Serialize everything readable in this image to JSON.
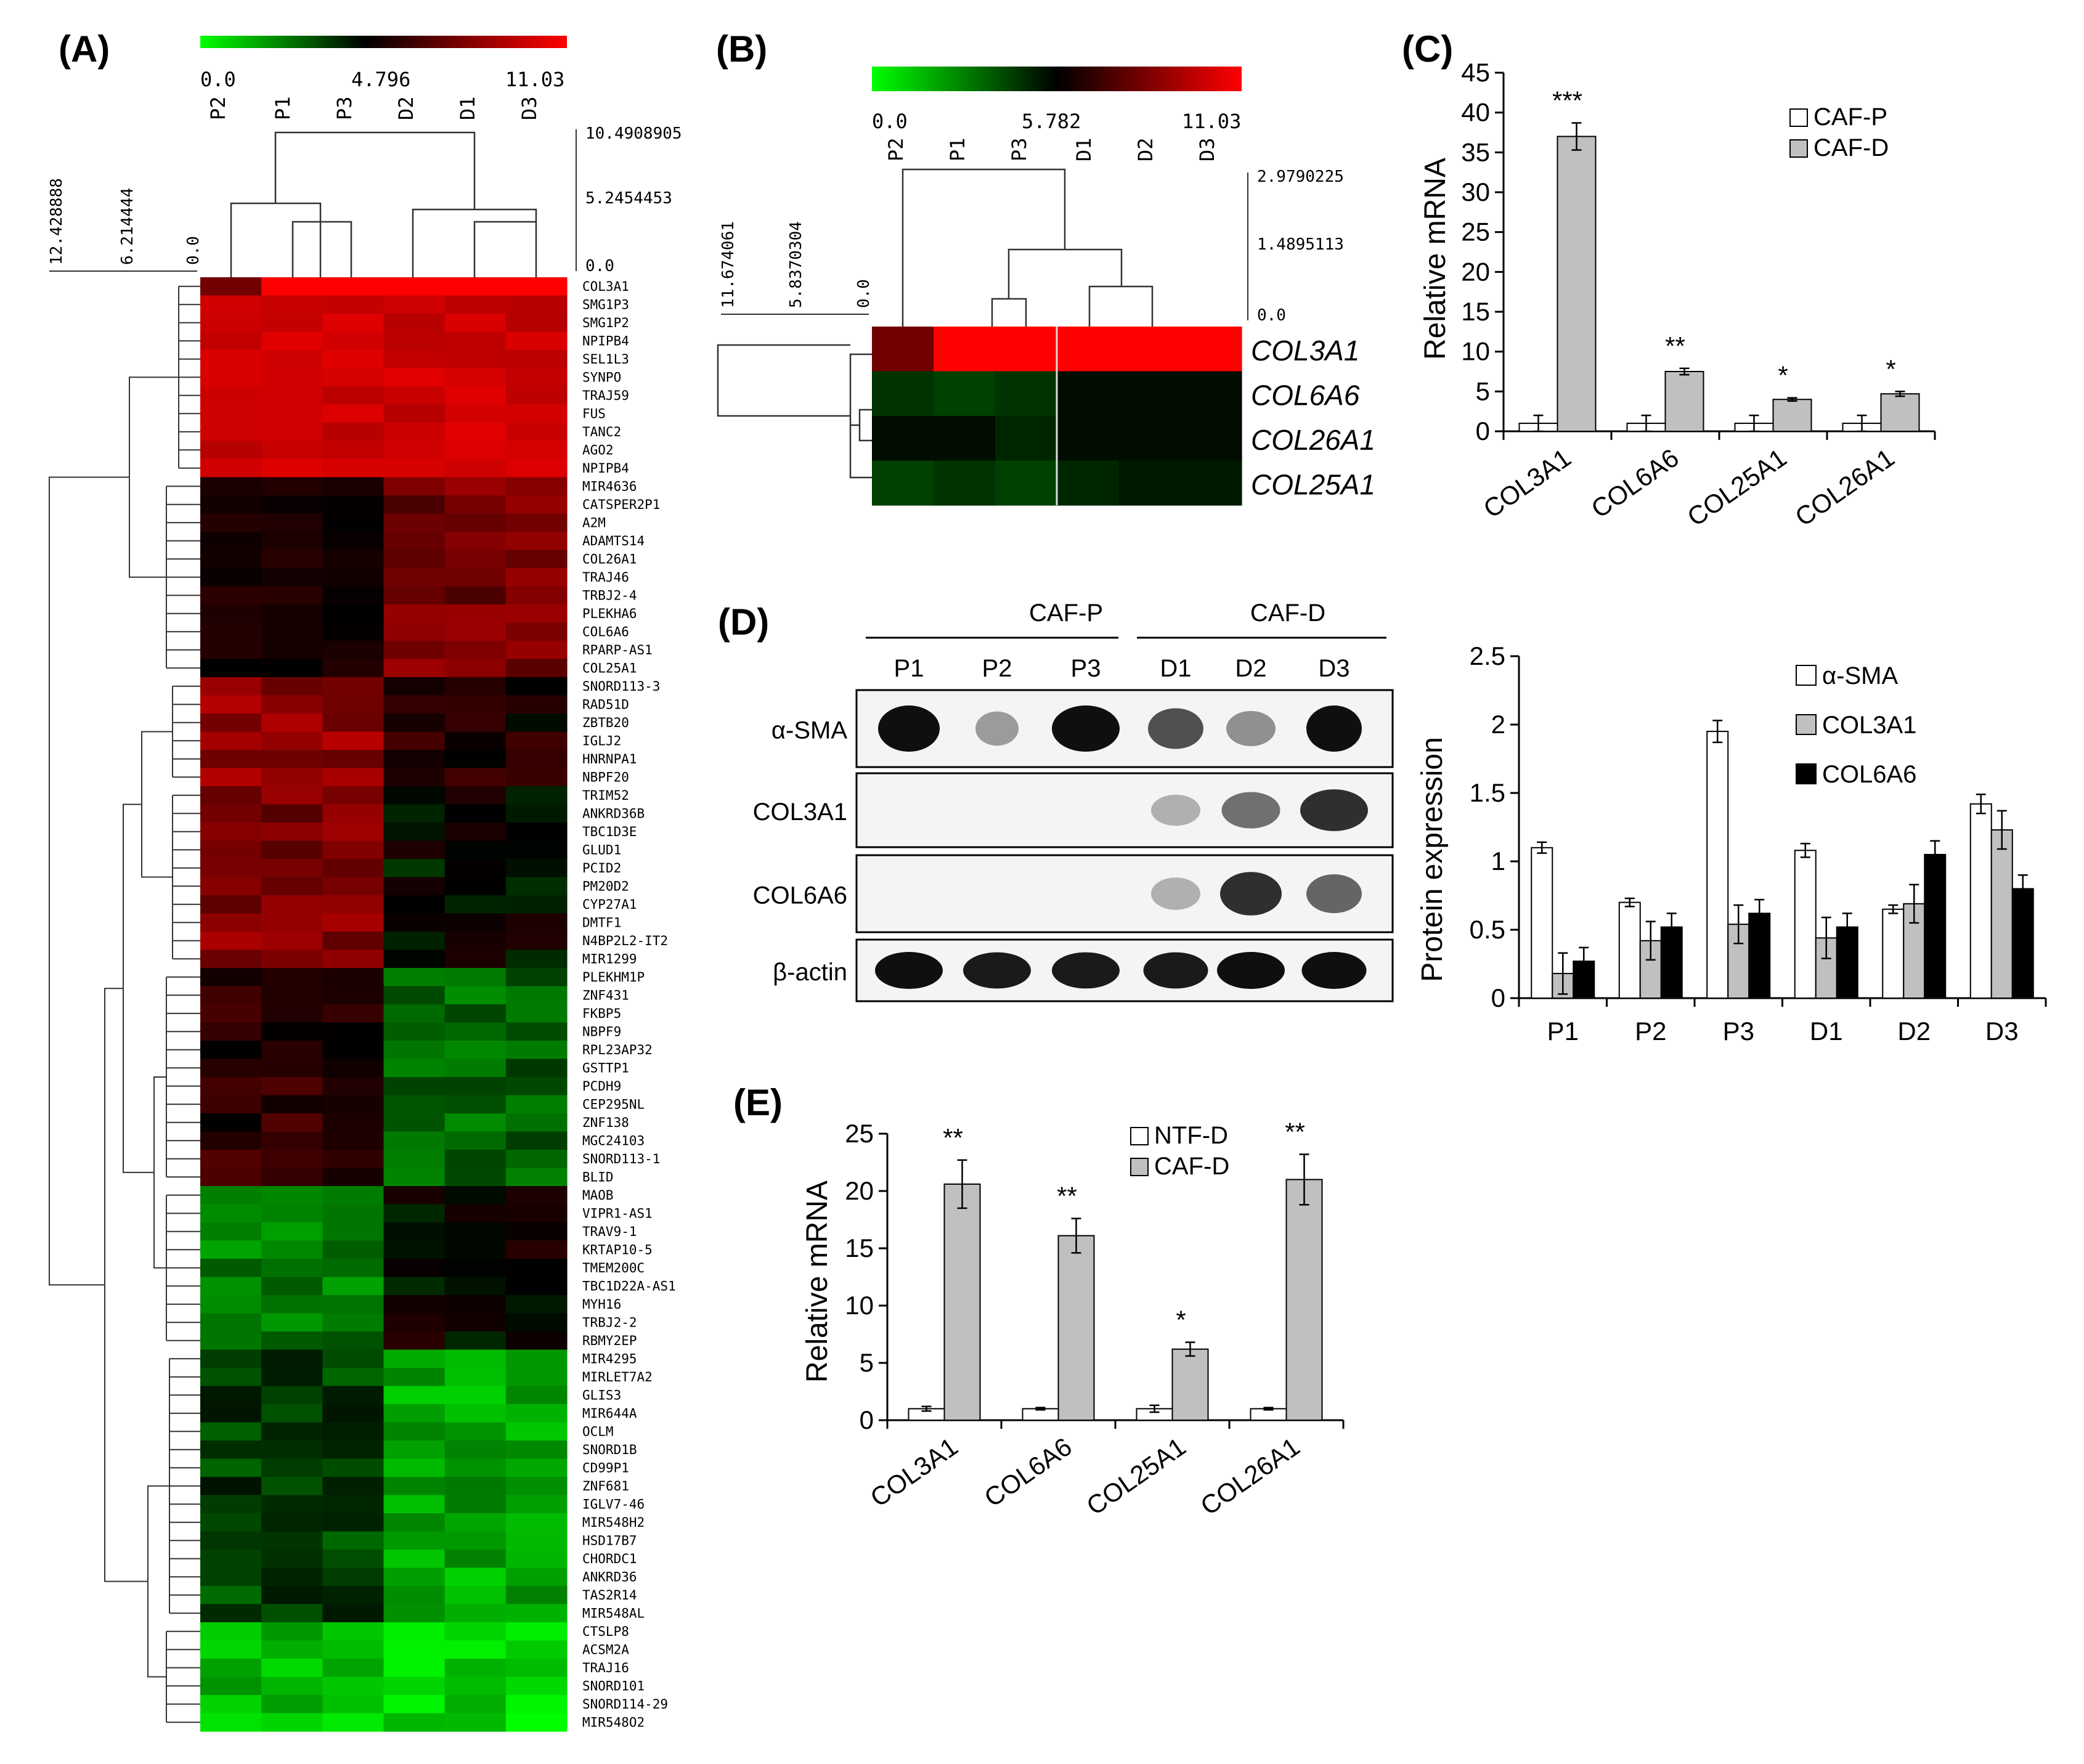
{
  "colors": {
    "low": "#00ff00",
    "mid": "#000000",
    "high": "#ff0000",
    "bar_white": "#ffffff",
    "bar_grey": "#c0c0c0",
    "bar_black": "#000000"
  },
  "panels": {
    "A": {
      "label": "(A)",
      "scale": [
        "0.0",
        "4.796",
        "11.03"
      ],
      "samples": [
        "P2",
        "P1",
        "P3",
        "D2",
        "D1",
        "D3"
      ],
      "col_dendro_scale": [
        "10.4908905",
        "5.2454453",
        "0.0"
      ],
      "row_dendro_scale": [
        "12.428888",
        "6.214444",
        "0.0"
      ],
      "genes": [
        "COL3A1",
        "SMG1P3",
        "SMG1P2",
        "NPIPB4",
        "SEL1L3",
        "SYNPO",
        "TRAJ59",
        "FUS",
        "TANC2",
        "AGO2",
        "NPIPB4",
        "MIR4636",
        "CATSPER2P1",
        "A2M",
        "ADAMTS14",
        "COL26A1",
        "TRAJ46",
        "TRBJ2-4",
        "PLEKHA6",
        "COL6A6",
        "RPARP-AS1",
        "COL25A1",
        "SNORD113-3",
        "RAD51D",
        "ZBTB20",
        "IGLJ2",
        "HNRNPA1",
        "NBPF20",
        "TRIM52",
        "ANKRD36B",
        "TBC1D3E",
        "GLUD1",
        "PCID2",
        "PM20D2",
        "CYP27A1",
        "DMTF1",
        "N4BP2L2-IT2",
        "MIR1299",
        "PLEKHM1P",
        "ZNF431",
        "FKBP5",
        "NBPF9",
        "RPL23AP32",
        "GSTTP1",
        "PCDH9",
        "CEP295NL",
        "ZNF138",
        "MGC24103",
        "SNORD113-1",
        "BLID",
        "MAOB",
        "VIPR1-AS1",
        "TRAV9-1",
        "KRTAP10-5",
        "TMEM200C",
        "TBC1D22A-AS1",
        "MYH16",
        "TRBJ2-2",
        "RBMY2EP",
        "MIR4295",
        "MIRLET7A2",
        "GLIS3",
        "MIR644A",
        "OCLM",
        "SNORD1B",
        "CD99P1",
        "ZNF681",
        "IGLV7-46",
        "MIR548H2",
        "HSD17B7",
        "CHORDC1",
        "ANKRD36",
        "TAS2R14",
        "MIR548AL",
        "CTSLP8",
        "ACSM2A",
        "TRAJ16",
        "SNORD101",
        "SNORD114-29",
        "MIR548O2"
      ]
    },
    "B": {
      "label": "(B)",
      "scale": [
        "0.0",
        "5.782",
        "11.03"
      ],
      "samples": [
        "P2",
        "P1",
        "P3",
        "D1",
        "D2",
        "D3"
      ],
      "col_dendro_scale": [
        "2.9790225",
        "1.4895113",
        "0.0"
      ],
      "row_dendro_scale": [
        "11.674061",
        "5.8370304",
        "0.0"
      ],
      "genes": [
        "COL3A1",
        "COL6A6",
        "COL26A1",
        "COL25A1"
      ]
    },
    "C": {
      "label": "(C)",
      "chart_data": {
        "type": "bar",
        "categories": [
          "COL3A1",
          "COL6A6",
          "COL25A1",
          "COL26A1"
        ],
        "series": [
          {
            "name": "CAF-P",
            "values": [
              1,
              1,
              1,
              1
            ],
            "errors": [
              1,
              1,
              1,
              1
            ]
          },
          {
            "name": "CAF-D",
            "values": [
              37,
              7.5,
              4,
              4.7
            ],
            "errors": [
              1.7,
              0.4,
              0.2,
              0.3
            ]
          }
        ],
        "ylabel": "Relative mRNA",
        "ylim": [
          0,
          45
        ],
        "yticks": [
          "0",
          "5",
          "10",
          "15",
          "20",
          "25",
          "30",
          "35",
          "40",
          "45"
        ],
        "significance": [
          "***",
          "**",
          "*",
          "*"
        ],
        "legend_position": "top-right"
      }
    },
    "D": {
      "label": "(D)",
      "groups": [
        "CAF-P",
        "CAF-D"
      ],
      "lanes": [
        "P1",
        "P2",
        "P3",
        "D1",
        "D2",
        "D3"
      ],
      "blots": [
        "α-SMA",
        "COL3A1",
        "COL6A6",
        "β-actin"
      ],
      "chart_data": {
        "type": "bar",
        "categories": [
          "P1",
          "P2",
          "P3",
          "D1",
          "D2",
          "D3"
        ],
        "series": [
          {
            "name": "α-SMA",
            "values": [
              1.1,
              0.7,
              1.95,
              1.08,
              0.65,
              1.42
            ],
            "errors": [
              0.04,
              0.03,
              0.08,
              0.05,
              0.03,
              0.07
            ]
          },
          {
            "name": "COL3A1",
            "values": [
              0.18,
              0.42,
              0.54,
              0.44,
              0.69,
              1.23
            ],
            "errors": [
              0.15,
              0.14,
              0.14,
              0.15,
              0.14,
              0.14
            ]
          },
          {
            "name": "COL6A6",
            "values": [
              0.27,
              0.52,
              0.62,
              0.52,
              1.05,
              0.8
            ],
            "errors": [
              0.1,
              0.1,
              0.1,
              0.1,
              0.1,
              0.1
            ]
          }
        ],
        "ylabel": "Protein expression",
        "ylim": [
          0,
          2.5
        ],
        "yticks": [
          "0",
          "0.5",
          "1",
          "1.5",
          "2",
          "2.5"
        ],
        "legend_position": "top-right"
      }
    },
    "E": {
      "label": "(E)",
      "chart_data": {
        "type": "bar",
        "categories": [
          "COL3A1",
          "COL6A6",
          "COL25A1",
          "COL26A1"
        ],
        "series": [
          {
            "name": "NTF-D",
            "values": [
              1,
              1,
              1,
              1
            ],
            "errors": [
              0.2,
              0.1,
              0.3,
              0.1
            ]
          },
          {
            "name": "CAF-D",
            "values": [
              20.6,
              16.1,
              6.2,
              21
            ],
            "errors": [
              2.1,
              1.5,
              0.6,
              2.2
            ]
          }
        ],
        "ylabel": "Relative mRNA",
        "ylim": [
          0,
          25
        ],
        "yticks": [
          "0",
          "5",
          "10",
          "15",
          "20",
          "25"
        ],
        "significance": [
          "**",
          "**",
          "*",
          "**"
        ],
        "legend_position": "top-right"
      }
    }
  }
}
